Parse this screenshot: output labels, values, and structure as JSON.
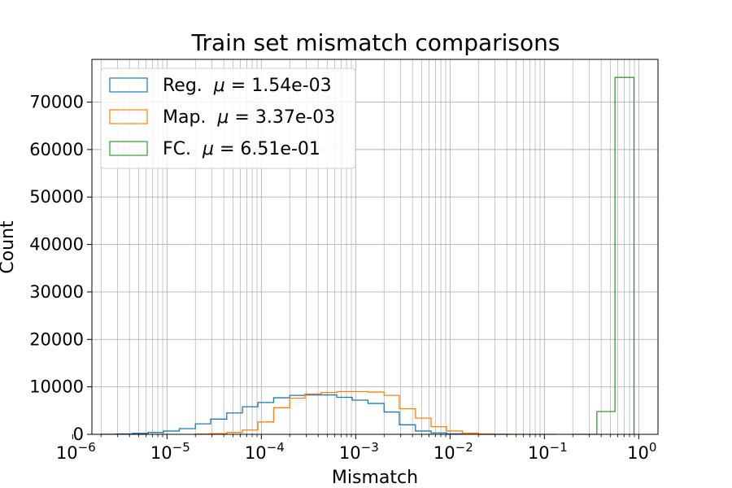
{
  "chart_data": {
    "type": "histogram",
    "title": "Train set mismatch comparisons",
    "xlabel": "Mismatch",
    "ylabel": "Count",
    "x_scale": "log",
    "xlim": [
      1.6e-06,
      1.6
    ],
    "ylim": [
      0,
      79000
    ],
    "grid": "major and minor, both axes",
    "legend_position": "top-left",
    "y_ticks": [
      0,
      10000,
      20000,
      30000,
      40000,
      50000,
      60000,
      70000
    ],
    "x_ticks": [
      {
        "value": 1e-06,
        "base": "10",
        "exp": "−6"
      },
      {
        "value": 1e-05,
        "base": "10",
        "exp": "−5"
      },
      {
        "value": 0.0001,
        "base": "10",
        "exp": "−4"
      },
      {
        "value": 0.001,
        "base": "10",
        "exp": "−3"
      },
      {
        "value": 0.01,
        "base": "10",
        "exp": "−2"
      },
      {
        "value": 0.1,
        "base": "10",
        "exp": "−1"
      },
      {
        "value": 1,
        "base": "10",
        "exp": "0"
      }
    ],
    "series": [
      {
        "name": "Reg.",
        "legend_prefix": "Reg.  ",
        "legend_mu": "μ",
        "legend_value": " = 1.54e-03",
        "color": "#1f77b4",
        "bin_edges": [
          2e-06,
          2.9e-06,
          4.3e-06,
          6.3e-06,
          9.2e-06,
          1.35e-05,
          2e-05,
          2.9e-05,
          4.3e-05,
          6.3e-05,
          9.2e-05,
          0.000135,
          0.0002,
          0.00029,
          0.00043,
          0.00063,
          0.00092,
          0.00135,
          0.002,
          0.0029,
          0.0043,
          0.0063,
          0.0092,
          0.0135,
          0.02,
          0.029,
          0.043
        ],
        "counts": [
          20,
          80,
          200,
          400,
          700,
          1200,
          2200,
          3200,
          4500,
          5800,
          6700,
          7700,
          8200,
          8300,
          8300,
          7800,
          7200,
          6500,
          4700,
          2000,
          700,
          300,
          100,
          40,
          10,
          0
        ]
      },
      {
        "name": "Map.",
        "legend_prefix": "Map.  ",
        "legend_mu": "μ",
        "legend_value": " = 3.37e-03",
        "color": "#ff7f0e",
        "bin_edges": [
          2e-05,
          2.9e-05,
          4.3e-05,
          6.3e-05,
          9.2e-05,
          0.000135,
          0.0002,
          0.00029,
          0.00043,
          0.00063,
          0.00092,
          0.00135,
          0.002,
          0.0029,
          0.0043,
          0.0063,
          0.0092,
          0.0135,
          0.02,
          0.029,
          0.043,
          0.063,
          0.092,
          0.135
        ],
        "counts": [
          50,
          150,
          400,
          900,
          2600,
          5600,
          7600,
          8500,
          8800,
          9000,
          9000,
          8900,
          8200,
          5400,
          3400,
          1600,
          700,
          250,
          80,
          20,
          5,
          0,
          0
        ]
      },
      {
        "name": "FC.",
        "legend_prefix": "FC.  ",
        "legend_mu": "μ",
        "legend_value": " = 6.51e-01",
        "color": "#2ca02c",
        "bin_edges": [
          0.2,
          0.36,
          0.56,
          0.89
        ],
        "counts": [
          0,
          4800,
          75200
        ]
      }
    ]
  }
}
